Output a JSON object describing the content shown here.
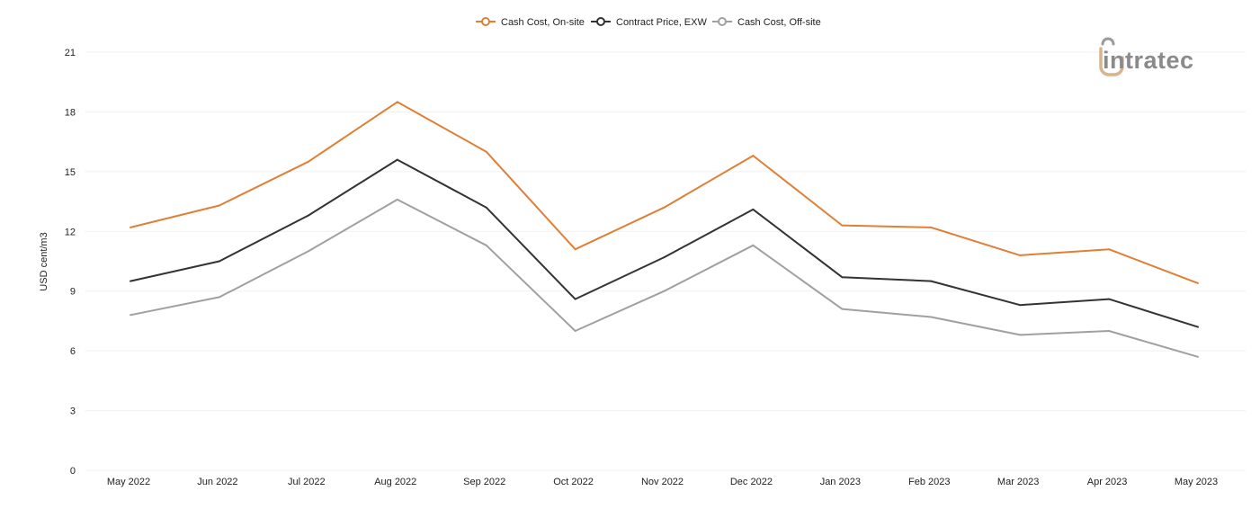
{
  "chart_data": {
    "type": "line",
    "title": "",
    "xlabel": "",
    "ylabel": "USD cent/m3",
    "ylim": [
      0,
      21
    ],
    "yticks": [
      "0",
      "3",
      "6",
      "9",
      "12",
      "15",
      "18",
      "21"
    ],
    "grid": true,
    "legend_position": "top-center",
    "categories": [
      "May 2022",
      "Jun 2022",
      "Jul 2022",
      "Aug 2022",
      "Sep 2022",
      "Oct 2022",
      "Nov 2022",
      "Dec 2022",
      "Jan 2023",
      "Feb 2023",
      "Mar 2023",
      "Apr 2023",
      "May 2023"
    ],
    "series": [
      {
        "name": "Cash Cost, On-site",
        "color": "#e07f35",
        "values": [
          12.2,
          13.3,
          15.5,
          18.5,
          16.0,
          11.1,
          13.2,
          15.8,
          12.3,
          12.2,
          10.8,
          11.1,
          9.4
        ]
      },
      {
        "name": "Contract Price, EXW",
        "color": "#333333",
        "values": [
          9.5,
          10.5,
          12.8,
          15.6,
          13.2,
          8.6,
          10.7,
          13.1,
          9.7,
          9.5,
          8.3,
          8.6,
          7.2
        ]
      },
      {
        "name": "Cash Cost, Off-site",
        "color": "#a0a0a0",
        "values": [
          7.8,
          8.7,
          11.0,
          13.6,
          11.3,
          7.0,
          9.0,
          11.3,
          8.1,
          7.7,
          6.8,
          7.0,
          5.7
        ]
      }
    ]
  },
  "logo": {
    "text": "intratec",
    "accent_color": "#d9b38c",
    "text_color": "#8a8a8a"
  }
}
